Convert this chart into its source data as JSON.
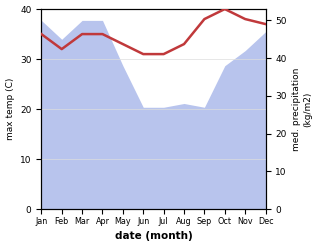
{
  "months": [
    1,
    2,
    3,
    4,
    5,
    6,
    7,
    8,
    9,
    10,
    11,
    12
  ],
  "month_labels": [
    "Jan",
    "Feb",
    "Mar",
    "Apr",
    "May",
    "Jun",
    "Jul",
    "Aug",
    "Sep",
    "Oct",
    "Nov",
    "Dec"
  ],
  "temp": [
    35,
    32,
    35,
    35,
    33,
    31,
    31,
    33,
    38,
    40,
    38,
    37
  ],
  "precip": [
    50,
    45,
    50,
    50,
    38,
    27,
    27,
    28,
    27,
    38,
    42,
    47
  ],
  "temp_color": "#c0393b",
  "precip_fill_color": "#b8c4ed",
  "ylabel_left": "max temp (C)",
  "ylabel_right": "med. precipitation\n(kg/m2)",
  "xlabel": "date (month)",
  "ylim_left": [
    0,
    40
  ],
  "ylim_right": [
    0,
    53
  ],
  "background_color": "#ffffff",
  "temp_linewidth": 1.8
}
